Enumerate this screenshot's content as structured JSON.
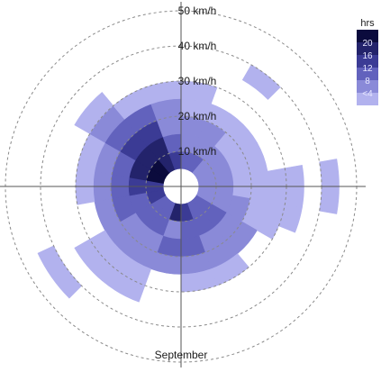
{
  "chart_data": {
    "type": "heatmap",
    "subtype": "polar-wind-rose",
    "title": "",
    "xlabel": "September",
    "angle_units": "degrees clockwise from north",
    "radius_units": "km/h",
    "rlim": [
      0,
      50
    ],
    "speed_rings": [
      {
        "value": 10,
        "label": "10 km/h"
      },
      {
        "value": 20,
        "label": "20 km/h"
      },
      {
        "value": 30,
        "label": "30 km/h"
      },
      {
        "value": 40,
        "label": "40 km/h"
      },
      {
        "value": 50,
        "label": "50 km/h"
      }
    ],
    "inner_hole_speed": 5,
    "grid": true,
    "legend": {
      "title": "hrs",
      "placement": "top-right",
      "ticks": [
        "20",
        "16",
        "12",
        "8",
        "<4"
      ],
      "colors": [
        "#0b0b3d",
        "#23236b",
        "#3b3b95",
        "#6262bd",
        "#8a8ad8",
        "#b2b2ee"
      ]
    },
    "colors": {
      "grid": "#8a8a8a",
      "axis": "#555555",
      "background": "#ffffff"
    },
    "cells": [
      {
        "a0": 0,
        "a1": 20,
        "r0": 5,
        "r1": 10,
        "hours": 10
      },
      {
        "a0": 20,
        "a1": 40,
        "r0": 5,
        "r1": 10,
        "hours": 8
      },
      {
        "a0": 40,
        "a1": 60,
        "r0": 5,
        "r1": 10,
        "hours": 7
      },
      {
        "a0": 60,
        "a1": 80,
        "r0": 5,
        "r1": 10,
        "hours": 6
      },
      {
        "a0": 80,
        "a1": 100,
        "r0": 5,
        "r1": 10,
        "hours": 6
      },
      {
        "a0": 100,
        "a1": 120,
        "r0": 5,
        "r1": 10,
        "hours": 7
      },
      {
        "a0": 120,
        "a1": 140,
        "r0": 5,
        "r1": 10,
        "hours": 9
      },
      {
        "a0": 140,
        "a1": 160,
        "r0": 5,
        "r1": 10,
        "hours": 11
      },
      {
        "a0": 160,
        "a1": 180,
        "r0": 5,
        "r1": 10,
        "hours": 12
      },
      {
        "a0": 180,
        "a1": 200,
        "r0": 5,
        "r1": 10,
        "hours": 18
      },
      {
        "a0": 200,
        "a1": 220,
        "r0": 5,
        "r1": 10,
        "hours": 9
      },
      {
        "a0": 220,
        "a1": 240,
        "r0": 5,
        "r1": 10,
        "hours": 11
      },
      {
        "a0": 240,
        "a1": 260,
        "r0": 5,
        "r1": 10,
        "hours": 13
      },
      {
        "a0": 260,
        "a1": 280,
        "r0": 5,
        "r1": 10,
        "hours": 15
      },
      {
        "a0": 280,
        "a1": 300,
        "r0": 5,
        "r1": 10,
        "hours": 20
      },
      {
        "a0": 300,
        "a1": 320,
        "r0": 5,
        "r1": 10,
        "hours": 22
      },
      {
        "a0": 320,
        "a1": 340,
        "r0": 5,
        "r1": 10,
        "hours": 18
      },
      {
        "a0": 340,
        "a1": 360,
        "r0": 5,
        "r1": 10,
        "hours": 13
      },
      {
        "a0": 0,
        "a1": 20,
        "r0": 10,
        "r1": 15,
        "hours": 7
      },
      {
        "a0": 20,
        "a1": 40,
        "r0": 10,
        "r1": 15,
        "hours": 6
      },
      {
        "a0": 40,
        "a1": 60,
        "r0": 10,
        "r1": 15,
        "hours": 5
      },
      {
        "a0": 60,
        "a1": 80,
        "r0": 10,
        "r1": 15,
        "hours": 4
      },
      {
        "a0": 80,
        "a1": 100,
        "r0": 10,
        "r1": 15,
        "hours": 5
      },
      {
        "a0": 100,
        "a1": 120,
        "r0": 10,
        "r1": 15,
        "hours": 6
      },
      {
        "a0": 120,
        "a1": 140,
        "r0": 10,
        "r1": 15,
        "hours": 8
      },
      {
        "a0": 140,
        "a1": 160,
        "r0": 10,
        "r1": 15,
        "hours": 9
      },
      {
        "a0": 160,
        "a1": 180,
        "r0": 10,
        "r1": 15,
        "hours": 10
      },
      {
        "a0": 180,
        "a1": 200,
        "r0": 10,
        "r1": 15,
        "hours": 7
      },
      {
        "a0": 200,
        "a1": 220,
        "r0": 10,
        "r1": 15,
        "hours": 8
      },
      {
        "a0": 220,
        "a1": 240,
        "r0": 10,
        "r1": 15,
        "hours": 9
      },
      {
        "a0": 240,
        "a1": 260,
        "r0": 10,
        "r1": 15,
        "hours": 11
      },
      {
        "a0": 260,
        "a1": 280,
        "r0": 10,
        "r1": 15,
        "hours": 12
      },
      {
        "a0": 280,
        "a1": 300,
        "r0": 10,
        "r1": 15,
        "hours": 16
      },
      {
        "a0": 300,
        "a1": 320,
        "r0": 10,
        "r1": 15,
        "hours": 19
      },
      {
        "a0": 320,
        "a1": 340,
        "r0": 10,
        "r1": 15,
        "hours": 17
      },
      {
        "a0": 340,
        "a1": 360,
        "r0": 10,
        "r1": 15,
        "hours": 11
      },
      {
        "a0": 0,
        "a1": 20,
        "r0": 15,
        "r1": 20,
        "hours": 5
      },
      {
        "a0": 20,
        "a1": 40,
        "r0": 15,
        "r1": 20,
        "hours": 4
      },
      {
        "a0": 40,
        "a1": 60,
        "r0": 15,
        "r1": 20,
        "hours": 3
      },
      {
        "a0": 60,
        "a1": 80,
        "r0": 15,
        "r1": 20,
        "hours": 2
      },
      {
        "a0": 80,
        "a1": 100,
        "r0": 15,
        "r1": 20,
        "hours": 3
      },
      {
        "a0": 100,
        "a1": 120,
        "r0": 15,
        "r1": 20,
        "hours": 4
      },
      {
        "a0": 120,
        "a1": 140,
        "r0": 15,
        "r1": 20,
        "hours": 6
      },
      {
        "a0": 140,
        "a1": 160,
        "r0": 15,
        "r1": 20,
        "hours": 7
      },
      {
        "a0": 160,
        "a1": 180,
        "r0": 15,
        "r1": 20,
        "hours": 9
      },
      {
        "a0": 180,
        "a1": 200,
        "r0": 15,
        "r1": 20,
        "hours": 8
      },
      {
        "a0": 200,
        "a1": 220,
        "r0": 15,
        "r1": 20,
        "hours": 6
      },
      {
        "a0": 220,
        "a1": 240,
        "r0": 15,
        "r1": 20,
        "hours": 7
      },
      {
        "a0": 240,
        "a1": 260,
        "r0": 15,
        "r1": 20,
        "hours": 8
      },
      {
        "a0": 260,
        "a1": 280,
        "r0": 15,
        "r1": 20,
        "hours": 9
      },
      {
        "a0": 280,
        "a1": 300,
        "r0": 15,
        "r1": 20,
        "hours": 11
      },
      {
        "a0": 300,
        "a1": 320,
        "r0": 15,
        "r1": 20,
        "hours": 14
      },
      {
        "a0": 320,
        "a1": 340,
        "r0": 15,
        "r1": 20,
        "hours": 12
      },
      {
        "a0": 340,
        "a1": 360,
        "r0": 15,
        "r1": 20,
        "hours": 7
      },
      {
        "a0": 0,
        "a1": 20,
        "r0": 20,
        "r1": 25,
        "hours": 3
      },
      {
        "a0": 20,
        "a1": 40,
        "r0": 20,
        "r1": 25,
        "hours": 2
      },
      {
        "a0": 40,
        "a1": 60,
        "r0": 20,
        "r1": 25,
        "hours": 2
      },
      {
        "a0": 60,
        "a1": 80,
        "r0": 20,
        "r1": 25,
        "hours": 1
      },
      {
        "a0": 80,
        "a1": 100,
        "r0": 20,
        "r1": 25,
        "hours": 2
      },
      {
        "a0": 100,
        "a1": 120,
        "r0": 20,
        "r1": 25,
        "hours": 2
      },
      {
        "a0": 120,
        "a1": 140,
        "r0": 20,
        "r1": 25,
        "hours": 4
      },
      {
        "a0": 140,
        "a1": 160,
        "r0": 20,
        "r1": 25,
        "hours": 5
      },
      {
        "a0": 160,
        "a1": 180,
        "r0": 20,
        "r1": 25,
        "hours": 6
      },
      {
        "a0": 180,
        "a1": 200,
        "r0": 20,
        "r1": 25,
        "hours": 4
      },
      {
        "a0": 200,
        "a1": 220,
        "r0": 20,
        "r1": 25,
        "hours": 4
      },
      {
        "a0": 220,
        "a1": 240,
        "r0": 20,
        "r1": 25,
        "hours": 5
      },
      {
        "a0": 240,
        "a1": 260,
        "r0": 20,
        "r1": 25,
        "hours": 5
      },
      {
        "a0": 260,
        "a1": 280,
        "r0": 20,
        "r1": 25,
        "hours": 6
      },
      {
        "a0": 280,
        "a1": 300,
        "r0": 20,
        "r1": 25,
        "hours": 7
      },
      {
        "a0": 300,
        "a1": 320,
        "r0": 20,
        "r1": 25,
        "hours": 9
      },
      {
        "a0": 320,
        "a1": 340,
        "r0": 20,
        "r1": 25,
        "hours": 8
      },
      {
        "a0": 340,
        "a1": 360,
        "r0": 20,
        "r1": 25,
        "hours": 5
      },
      {
        "a0": 80,
        "a1": 100,
        "r0": 25,
        "r1": 30,
        "hours": 2
      },
      {
        "a0": 100,
        "a1": 120,
        "r0": 25,
        "r1": 30,
        "hours": 1
      },
      {
        "a0": 140,
        "a1": 160,
        "r0": 25,
        "r1": 30,
        "hours": 3
      },
      {
        "a0": 160,
        "a1": 180,
        "r0": 25,
        "r1": 30,
        "hours": 2
      },
      {
        "a0": 200,
        "a1": 220,
        "r0": 25,
        "r1": 30,
        "hours": 3
      },
      {
        "a0": 220,
        "a1": 240,
        "r0": 25,
        "r1": 30,
        "hours": 2
      },
      {
        "a0": 260,
        "a1": 280,
        "r0": 25,
        "r1": 30,
        "hours": 2
      },
      {
        "a0": 280,
        "a1": 300,
        "r0": 25,
        "r1": 30,
        "hours": 3
      },
      {
        "a0": 300,
        "a1": 320,
        "r0": 25,
        "r1": 30,
        "hours": 4
      },
      {
        "a0": 320,
        "a1": 340,
        "r0": 25,
        "r1": 30,
        "hours": 3
      },
      {
        "a0": 340,
        "a1": 360,
        "r0": 25,
        "r1": 30,
        "hours": 2
      },
      {
        "a0": 0,
        "a1": 20,
        "r0": 25,
        "r1": 30,
        "hours": 1
      },
      {
        "a0": 200,
        "a1": 220,
        "r0": 30,
        "r1": 35,
        "hours": 2
      },
      {
        "a0": 220,
        "a1": 240,
        "r0": 30,
        "r1": 35,
        "hours": 1
      },
      {
        "a0": 80,
        "a1": 100,
        "r0": 30,
        "r1": 35,
        "hours": 1
      },
      {
        "a0": 100,
        "a1": 112,
        "r0": 30,
        "r1": 35,
        "hours": 1
      },
      {
        "a0": 300,
        "a1": 320,
        "r0": 30,
        "r1": 35,
        "hours": 1
      },
      {
        "a0": 30,
        "a1": 45,
        "r0": 35,
        "r1": 40,
        "hours": 1
      },
      {
        "a0": 80,
        "a1": 100,
        "r0": 40,
        "r1": 45,
        "hours": 1
      },
      {
        "a0": 225,
        "a1": 245,
        "r0": 40,
        "r1": 45,
        "hours": 1
      }
    ]
  }
}
